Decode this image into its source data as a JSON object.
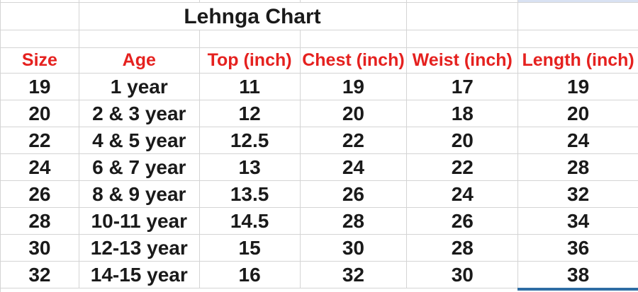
{
  "title": "Lehnga Chart",
  "colors": {
    "header_text": "#e5211f",
    "body_text": "#1a1a1a",
    "gridline": "#d4d4d4",
    "selection_bar": "#2e6da4",
    "selection_fill": "#d9e2f3",
    "background": "#ffffff"
  },
  "table": {
    "columns": [
      "Size",
      "Age",
      "Top (inch)",
      "Chest (inch)",
      "Weist (inch)",
      "Length (inch)"
    ],
    "rows": [
      [
        "19",
        "1 year",
        "11",
        "19",
        "17",
        "19"
      ],
      [
        "20",
        "2 & 3 year",
        "12",
        "20",
        "18",
        "20"
      ],
      [
        "22",
        "4 & 5 year",
        "12.5",
        "22",
        "20",
        "24"
      ],
      [
        "24",
        "6 & 7 year",
        "13",
        "24",
        "22",
        "28"
      ],
      [
        "26",
        "8 & 9 year",
        "13.5",
        "26",
        "24",
        "32"
      ],
      [
        "28",
        "10-11 year",
        "14.5",
        "28",
        "26",
        "34"
      ],
      [
        "30",
        "12-13 year",
        "15",
        "30",
        "28",
        "36"
      ],
      [
        "32",
        "14-15 year",
        "16",
        "32",
        "30",
        "38"
      ]
    ]
  }
}
